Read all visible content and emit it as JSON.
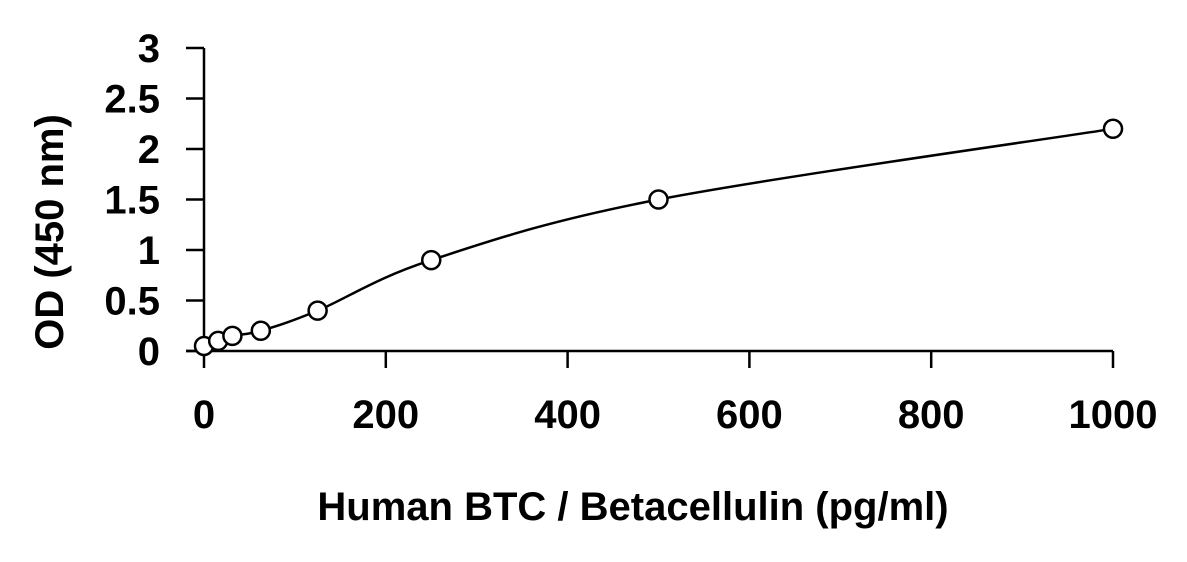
{
  "chart_data": {
    "type": "scatter",
    "title": "",
    "xlabel": "Human BTC / Betacellulin (pg/ml)",
    "ylabel": "OD (450 nm)",
    "xlim": [
      0,
      1000
    ],
    "ylim": [
      0,
      3
    ],
    "x_ticks": [
      "0",
      "200",
      "400",
      "600",
      "800",
      "1000"
    ],
    "y_ticks": [
      "0",
      "0.5",
      "1",
      "1.5",
      "2",
      "2.5",
      "3"
    ],
    "grid": false,
    "legend": "none",
    "series": [
      {
        "marker": "open-circle",
        "fit_line": "smooth-curve",
        "points": [
          {
            "x": 0,
            "y": 0.05
          },
          {
            "x": 15.6,
            "y": 0.1
          },
          {
            "x": 31.25,
            "y": 0.15
          },
          {
            "x": 62.5,
            "y": 0.2
          },
          {
            "x": 125,
            "y": 0.4
          },
          {
            "x": 250,
            "y": 0.9
          },
          {
            "x": 500,
            "y": 1.5
          },
          {
            "x": 1000,
            "y": 2.2
          }
        ]
      }
    ],
    "colors": {
      "line": "#000000",
      "marker": "#000000",
      "background": "#ffffff"
    }
  }
}
